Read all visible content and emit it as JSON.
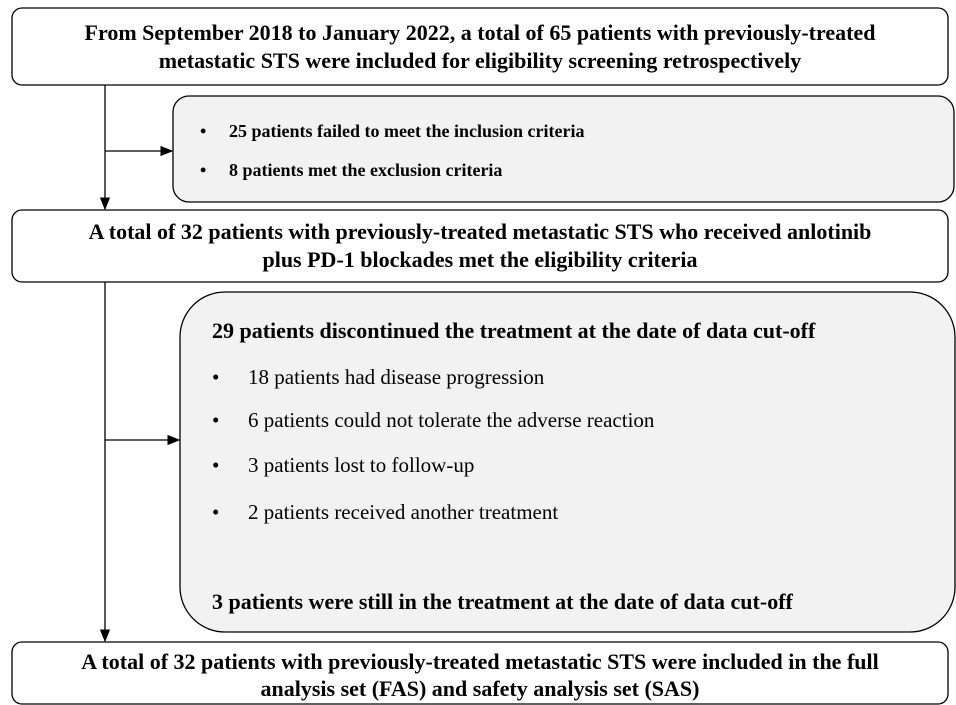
{
  "steps": [
    {
      "lines": [
        "From September 2018 to January 2022, a total of 65 patients with previously-treated",
        "metastatic STS were included for eligibility screening retrospectively"
      ]
    },
    {
      "lines": [
        "A total of 32 patients with previously-treated metastatic STS who received anlotinib",
        "plus PD-1 blockades met the eligibility criteria"
      ]
    },
    {
      "lines": [
        "A total of 32 patients with previously-treated metastatic STS were included in the full",
        "analysis set (FAS) and safety analysis set (SAS)"
      ]
    }
  ],
  "exclusions": {
    "items": [
      "25 patients failed to meet the inclusion criteria",
      "8 patients met the exclusion criteria"
    ]
  },
  "discontinued": {
    "heading": "29 patients discontinued the treatment at the date of data cut-off",
    "items": [
      "18 patients had disease progression",
      "6 patients could not tolerate the adverse reaction",
      "3 patients lost to follow-up",
      "2 patients received another treatment"
    ],
    "footer": "3 patients were still in the treatment at the date of data cut-off"
  }
}
